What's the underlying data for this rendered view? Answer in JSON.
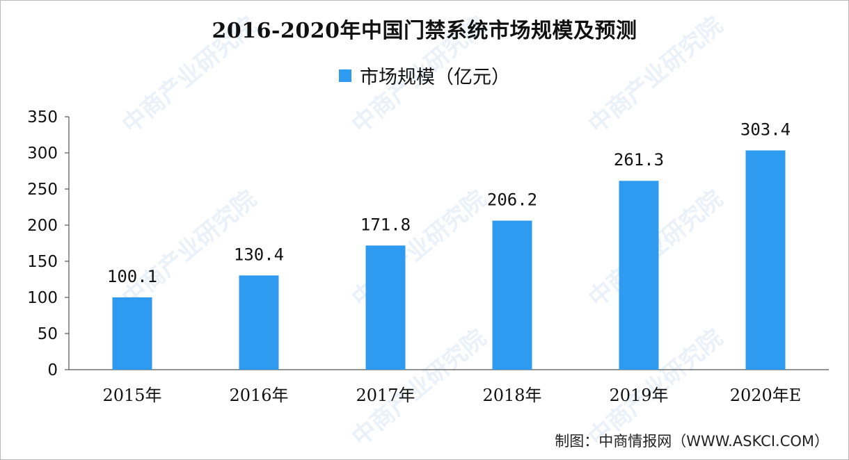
{
  "chart_data": {
    "type": "bar",
    "title": "2016-2020年中国门禁系统市场规模及预测",
    "categories": [
      "2015年",
      "2016年",
      "2017年",
      "2018年",
      "2019年",
      "2020年E"
    ],
    "series": [
      {
        "name": "市场规模（亿元）",
        "values": [
          100.1,
          130.4,
          171.8,
          206.2,
          261.3,
          303.4
        ]
      }
    ],
    "data_labels": [
      "100.1",
      "130.4",
      "171.8",
      "206.2",
      "261.3",
      "303.4"
    ],
    "ylim": [
      0,
      350
    ],
    "yticks": [
      0,
      50,
      100,
      150,
      200,
      250,
      300,
      350
    ],
    "ytick_labels": [
      "0",
      "50",
      "100",
      "150",
      "200",
      "250",
      "300",
      "350"
    ],
    "grid": false,
    "legend_position": "top-center",
    "bar_color": "#2f9bf0"
  },
  "watermark": {
    "text": "中商产业研究院",
    "repeats": [
      "中商产业研究院",
      "中商产业研究院",
      "中商产业研究院",
      "中商产业研究院",
      "中商产业研究院",
      "中商产业研究院",
      "中商产业研究院",
      "中商产业研究院"
    ]
  },
  "source": "制图：中商情报网（WWW.ASKCI.COM）"
}
